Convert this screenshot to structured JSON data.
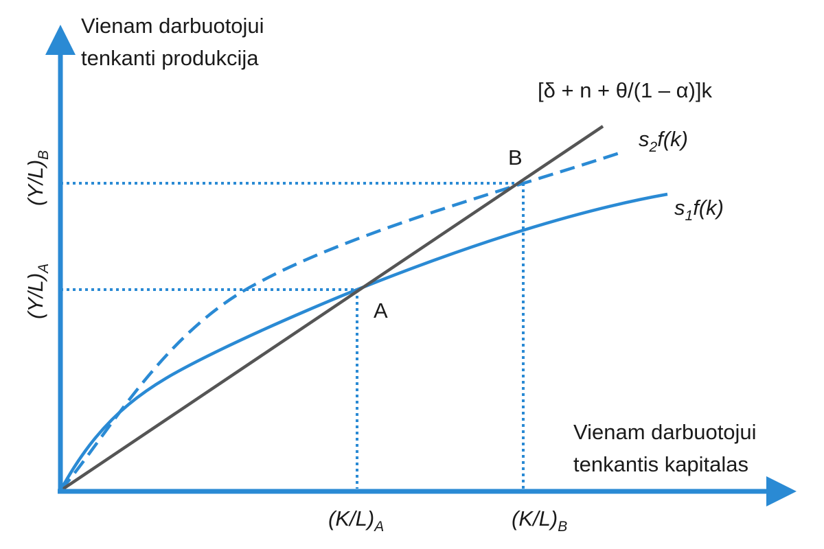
{
  "chart_data": {
    "type": "line",
    "title": "",
    "ylabel_line1": "Vienam darbuotojui",
    "ylabel_line2": "tenkanti produkcija",
    "xlabel_line1": "Vienam darbuotojui",
    "xlabel_line2": "tenkantis kapitalas",
    "series": [
      {
        "name": "[δ + n + θ/(1 – α)]k",
        "style": "solid",
        "color": "#555555"
      },
      {
        "name_parts": {
          "main": "s",
          "sub": "2",
          "rest": "f(k)"
        },
        "style": "dashed",
        "color": "#2a8ad4"
      },
      {
        "name_parts": {
          "main": "s",
          "sub": "1",
          "rest": "f(k)"
        },
        "style": "solid",
        "color": "#2a8ad4"
      }
    ],
    "points": [
      {
        "name": "A",
        "x_label": "(K/L)",
        "x_sub": "A",
        "y_label": "(Y/L)",
        "y_sub": "A"
      },
      {
        "name": "B",
        "x_label": "(K/L)",
        "x_sub": "B",
        "y_label": "(Y/L)",
        "y_sub": "B"
      }
    ],
    "axis_color": "#2a8ad4",
    "guide_color": "#2a8ad4"
  }
}
